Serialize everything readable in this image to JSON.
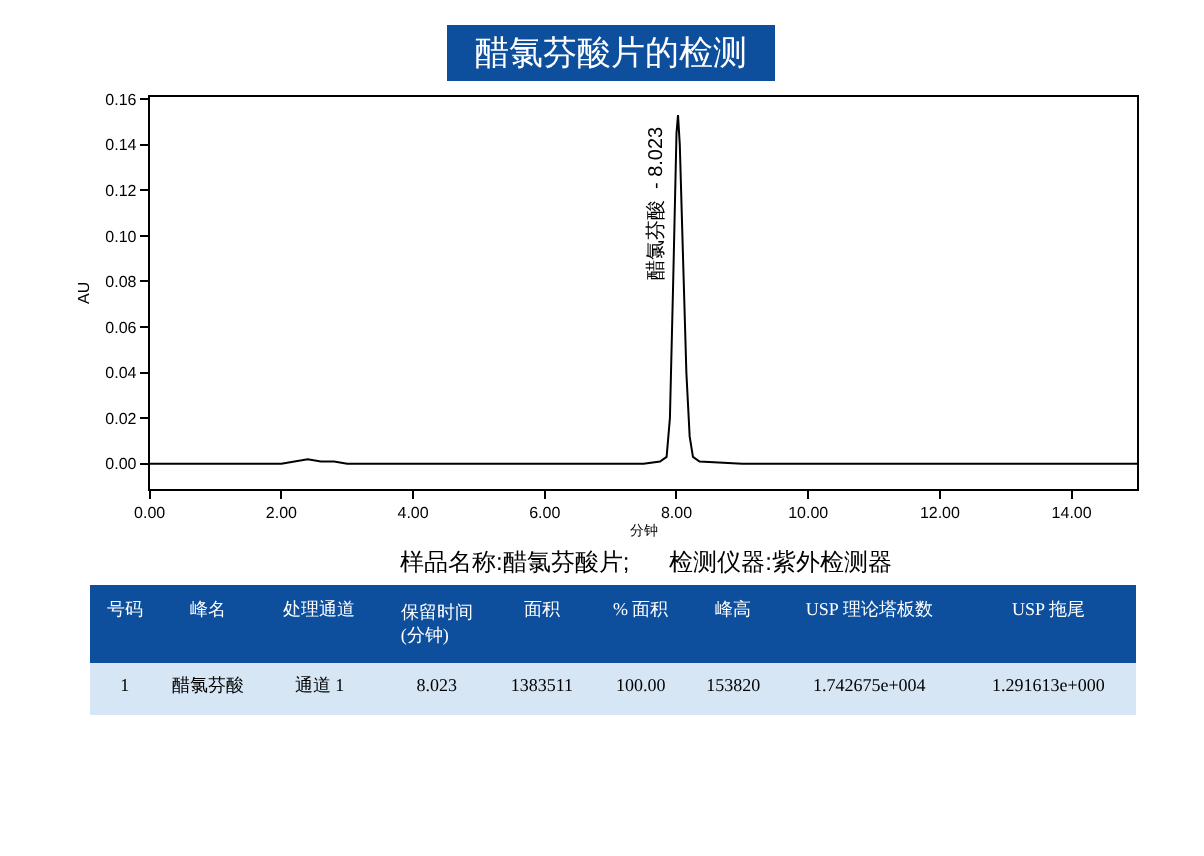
{
  "chart_data": {
    "type": "line",
    "title": "醋氯芬酸片的检测",
    "subtitle": "样品名称:醋氯芬酸片;      检测仪器:紫外检测器",
    "xlabel": "分钟",
    "ylabel": "AU",
    "x": [
      0,
      1.0,
      2.0,
      2.2,
      2.4,
      2.6,
      2.8,
      3.0,
      4.0,
      5.0,
      6.0,
      6.6,
      7.0,
      7.5,
      7.75,
      7.85,
      7.9,
      7.95,
      8.0,
      8.023,
      8.05,
      8.1,
      8.15,
      8.2,
      8.25,
      8.35,
      9.0,
      10.0,
      11.0,
      12.0,
      13.0,
      14.0,
      15.0
    ],
    "series": [
      {
        "color": "#000000",
        "values": [
          0,
          0,
          0,
          0.001,
          0.002,
          0.001,
          0.001,
          0,
          0,
          0,
          0,
          0,
          0,
          0,
          0.001,
          0.003,
          0.02,
          0.08,
          0.145,
          0.153,
          0.14,
          0.09,
          0.04,
          0.012,
          0.003,
          0.001,
          0,
          0,
          0,
          0,
          0,
          0,
          0
        ]
      }
    ],
    "xlim": [
      0,
      15
    ],
    "ylim": [
      -0.011,
      0.161
    ],
    "xticks": [
      {
        "value": 0,
        "label": "0.00"
      },
      {
        "value": 2,
        "label": "2.00"
      },
      {
        "value": 4,
        "label": "4.00"
      },
      {
        "value": 6,
        "label": "6.00"
      },
      {
        "value": 8,
        "label": "8.00"
      },
      {
        "value": 10,
        "label": "10.00"
      },
      {
        "value": 12,
        "label": "12.00"
      },
      {
        "value": 14,
        "label": "14.00"
      }
    ],
    "yticks": [
      {
        "value": 0,
        "label": "0.00"
      },
      {
        "value": 0.02,
        "label": "0.02"
      },
      {
        "value": 0.04,
        "label": "0.04"
      },
      {
        "value": 0.06,
        "label": "0.06"
      },
      {
        "value": 0.08,
        "label": "0.08"
      },
      {
        "value": 0.1,
        "label": "0.10"
      },
      {
        "value": 0.12,
        "label": "0.12"
      },
      {
        "value": 0.14,
        "label": "0.14"
      },
      {
        "value": 0.16,
        "label": "0.16"
      }
    ],
    "marker": "none",
    "line_style": "solid",
    "annotations": [
      {
        "text": "醋氯芬酸  - 8.023",
        "x": 8.023,
        "y": 0.153
      },
      "号码",
      "峰名",
      "处理通道",
      "保留时间\n(分钟)",
      "面积",
      "% 面积",
      "峰高",
      "USP 理论塔板数",
      "USP 拖尾",
      "1",
      "醋氯芬酸",
      "通道 1",
      "8.023",
      "1383511",
      "100.00",
      "153820",
      "1.742675e+004",
      "1.291613e+000"
    ]
  }
}
